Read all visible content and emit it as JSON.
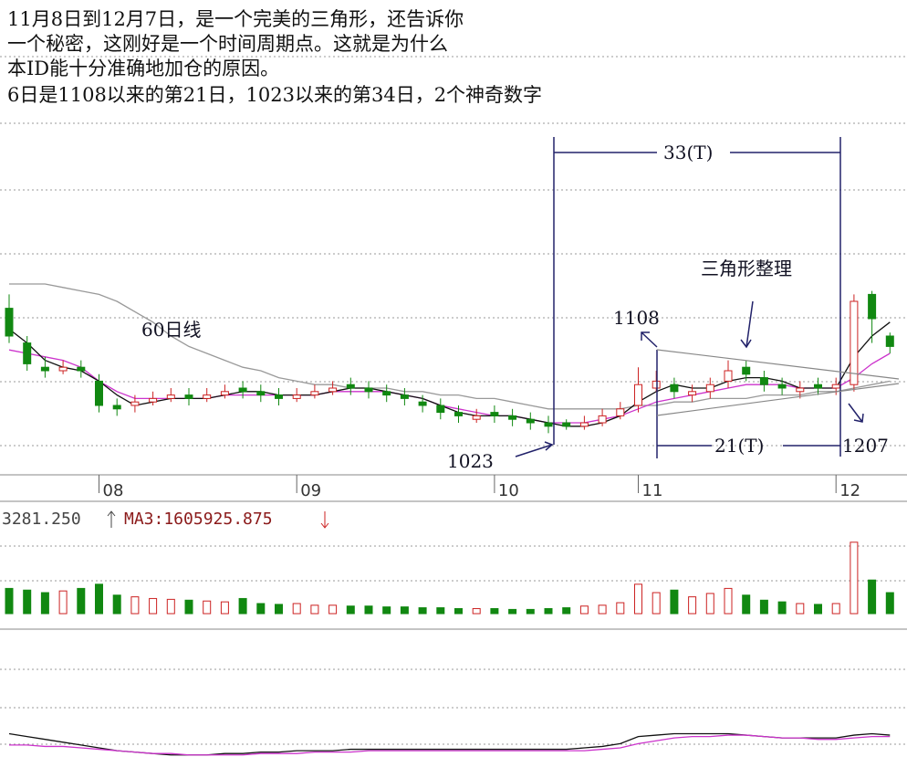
{
  "chart_data": {
    "type": "candlestick",
    "notes": [
      "11月8日到12月7日，是一个完美的三角形，还告诉你",
      "一个秘密，这刚好是一个时间周期点。这就是为什么",
      "本ID能十分准确地加仓的原因。",
      "6日是1108以来的第21日，1023以来的第34日，2个神奇数字"
    ],
    "annotations": [
      "33(T)",
      "21(T)",
      "三角形整理",
      "1108",
      "1023",
      "1207",
      "60日线"
    ],
    "categories": [
      null,
      null,
      null,
      null,
      null,
      "08",
      null,
      null,
      null,
      null,
      null,
      null,
      null,
      null,
      null,
      null,
      "09",
      null,
      null,
      null,
      null,
      null,
      null,
      null,
      null,
      null,
      null,
      "10",
      null,
      null,
      null,
      null,
      null,
      null,
      null,
      "11",
      null,
      null,
      null,
      null,
      null,
      null,
      null,
      null,
      null,
      null,
      "12",
      null,
      null,
      null
    ],
    "open": [
      48,
      38,
      31,
      30,
      31,
      27,
      20,
      20,
      21,
      22,
      23,
      22,
      23,
      25,
      24,
      23,
      22,
      23,
      24,
      26,
      25,
      24,
      23,
      21,
      20,
      18,
      16,
      18,
      17,
      16,
      15,
      15,
      14,
      15,
      17,
      20,
      25,
      26,
      23,
      24,
      27,
      31,
      28,
      26,
      24,
      26,
      25,
      26,
      52,
      40
    ],
    "high": [
      52,
      40,
      34,
      33,
      33,
      29,
      22,
      23,
      24,
      25,
      25,
      25,
      26,
      27,
      26,
      25,
      25,
      26,
      27,
      28,
      27,
      26,
      25,
      23,
      22,
      20,
      19,
      20,
      19,
      18,
      17,
      16,
      17,
      19,
      21,
      31,
      30,
      28,
      26,
      28,
      33,
      33,
      30,
      28,
      27,
      28,
      28,
      52,
      53,
      41
    ],
    "low": [
      38,
      30,
      28,
      29,
      28,
      18,
      17,
      18,
      20,
      21,
      20,
      21,
      22,
      22,
      21,
      20,
      21,
      22,
      23,
      23,
      22,
      21,
      20,
      18,
      16,
      15,
      15,
      15,
      14,
      13,
      12,
      13,
      13,
      14,
      16,
      18,
      24,
      22,
      21,
      22,
      25,
      27,
      24,
      23,
      22,
      23,
      23,
      24,
      38,
      35
    ],
    "close": [
      40,
      32,
      30,
      31,
      30,
      20,
      19,
      21,
      22,
      23,
      22,
      23,
      24,
      24,
      23,
      22,
      23,
      24,
      25,
      25,
      24,
      23,
      22,
      20,
      18,
      17,
      17,
      17,
      16,
      15,
      14,
      14,
      15,
      17,
      19,
      26,
      27,
      24,
      24,
      26,
      30,
      29,
      26,
      25,
      25,
      25,
      26,
      50,
      45,
      37
    ],
    "up_color": "#cc2222",
    "down_color": "#118811",
    "ylim": [
      0,
      100
    ],
    "lines": [
      {
        "color": "#999999",
        "values": [
          55,
          55,
          55,
          54,
          53,
          52,
          50,
          47,
          44,
          40,
          37,
          35,
          33,
          31,
          30,
          28,
          27,
          26,
          26,
          25,
          25,
          25,
          24,
          24,
          23,
          23,
          22,
          22,
          21,
          20,
          19,
          19,
          19,
          19,
          19,
          20,
          20,
          21,
          21,
          22,
          22,
          22,
          23,
          23,
          23,
          24,
          24,
          25,
          26,
          27
        ]
      },
      {
        "color": "#cc33cc",
        "values": [
          36,
          35,
          34,
          33,
          31,
          27,
          24,
          22,
          22,
          22,
          22,
          22,
          23,
          23,
          23,
          23,
          23,
          23,
          24,
          24,
          24,
          24,
          23,
          22,
          20,
          19,
          18,
          17,
          17,
          16,
          15,
          15,
          15,
          16,
          17,
          19,
          21,
          22,
          23,
          24,
          25,
          26,
          26,
          26,
          25,
          25,
          25,
          28,
          32,
          35
        ]
      },
      {
        "color": "#111111",
        "values": [
          42,
          38,
          33,
          31,
          30,
          27,
          23,
          20,
          21,
          22,
          22,
          22,
          23,
          24,
          24,
          23,
          23,
          23,
          24,
          25,
          25,
          24,
          23,
          22,
          20,
          18,
          17,
          17,
          17,
          16,
          15,
          14,
          14,
          15,
          17,
          21,
          24,
          26,
          25,
          25,
          27,
          28,
          28,
          27,
          25,
          25,
          25,
          34,
          40,
          44
        ]
      }
    ],
    "volume_labels": [
      "3281.250",
      "MA3:1605925.875"
    ],
    "volume": [
      30,
      28,
      25,
      27,
      30,
      35,
      22,
      20,
      18,
      17,
      16,
      15,
      14,
      18,
      12,
      11,
      12,
      10,
      10,
      9,
      9,
      8,
      8,
      7,
      7,
      6,
      6,
      6,
      5,
      5,
      6,
      7,
      9,
      10,
      13,
      35,
      25,
      28,
      20,
      24,
      30,
      22,
      16,
      14,
      12,
      11,
      12,
      85,
      40,
      25
    ],
    "volume_ylim": [
      0,
      100
    ],
    "indicator_ylim": [
      0,
      100
    ],
    "indicator": [
      {
        "color": "#111111",
        "values": [
          30,
          28,
          26,
          24,
          22,
          20,
          18,
          17,
          16,
          15,
          15,
          15,
          16,
          16,
          17,
          17,
          18,
          18,
          18,
          19,
          19,
          19,
          19,
          19,
          19,
          19,
          19,
          19,
          19,
          19,
          19,
          19,
          20,
          21,
          23,
          28,
          29,
          30,
          30,
          30,
          30,
          29,
          28,
          27,
          27,
          27,
          27,
          29,
          30,
          29
        ]
      },
      {
        "color": "#cc33cc",
        "values": [
          22,
          22,
          21,
          21,
          20,
          19,
          18,
          17,
          16,
          16,
          15,
          15,
          15,
          15,
          16,
          16,
          16,
          17,
          17,
          17,
          18,
          18,
          18,
          18,
          18,
          18,
          18,
          18,
          18,
          18,
          18,
          18,
          18,
          19,
          20,
          23,
          25,
          27,
          28,
          28,
          29,
          29,
          28,
          27,
          27,
          26,
          26,
          27,
          28,
          28
        ]
      }
    ]
  }
}
